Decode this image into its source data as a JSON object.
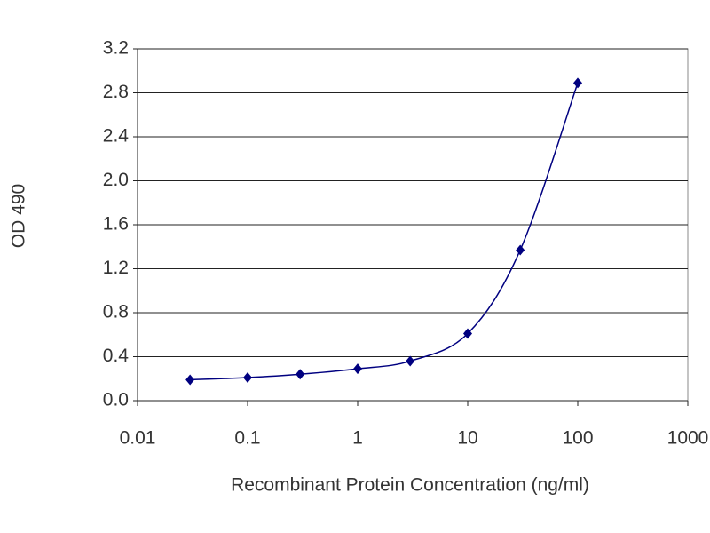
{
  "chart_data": {
    "type": "line",
    "x_label": "Recombinant Protein Concentration (ng/ml)",
    "y_label": "OD 490",
    "x": [
      0.03,
      0.1,
      0.3,
      1,
      3,
      10,
      30,
      100
    ],
    "values": [
      0.19,
      0.21,
      0.24,
      0.29,
      0.36,
      0.61,
      1.37,
      2.89
    ],
    "color": "#000080",
    "x_log": true,
    "grid": true,
    "xlim": [
      0.01,
      1000
    ],
    "xticks": [
      0.01,
      0.1,
      1,
      10,
      100,
      1000
    ],
    "ylim": [
      0,
      3.2
    ],
    "yticks": [
      {
        "value": 0,
        "label": "0.0"
      },
      0.4,
      0.8,
      1.2,
      1.6,
      {
        "value": 2,
        "label": "2.0"
      },
      2.4,
      2.8,
      3.2
    ]
  }
}
